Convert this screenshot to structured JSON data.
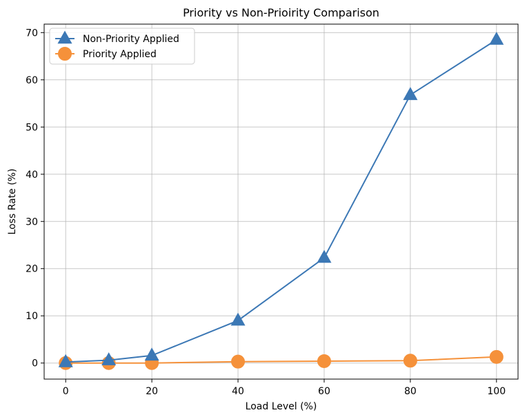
{
  "chart_data": {
    "type": "line",
    "title": "Priority vs Non-Prioirity Comparison",
    "xlabel": "Load Level (%)",
    "ylabel": "Loss Rate (%)",
    "xlim": [
      -5,
      105
    ],
    "ylim": [
      -3.4,
      71.8
    ],
    "xticks": [
      0,
      20,
      40,
      60,
      80,
      100
    ],
    "yticks": [
      0,
      10,
      20,
      30,
      40,
      50,
      60,
      70
    ],
    "grid": true,
    "legend_position": "top-left",
    "series": [
      {
        "name": "Non-Priority Applied",
        "marker": "triangle",
        "color": "#3c78b5",
        "x": [
          0,
          10,
          20,
          40,
          60,
          80,
          100
        ],
        "y": [
          0.2,
          0.6,
          1.6,
          9.0,
          22.3,
          56.8,
          68.5
        ]
      },
      {
        "name": "Priority Applied",
        "marker": "circle",
        "color": "#f5913a",
        "x": [
          0,
          10,
          20,
          40,
          60,
          80,
          100
        ],
        "y": [
          0.0,
          0.0,
          0.0,
          0.3,
          0.4,
          0.5,
          1.3
        ]
      }
    ]
  }
}
